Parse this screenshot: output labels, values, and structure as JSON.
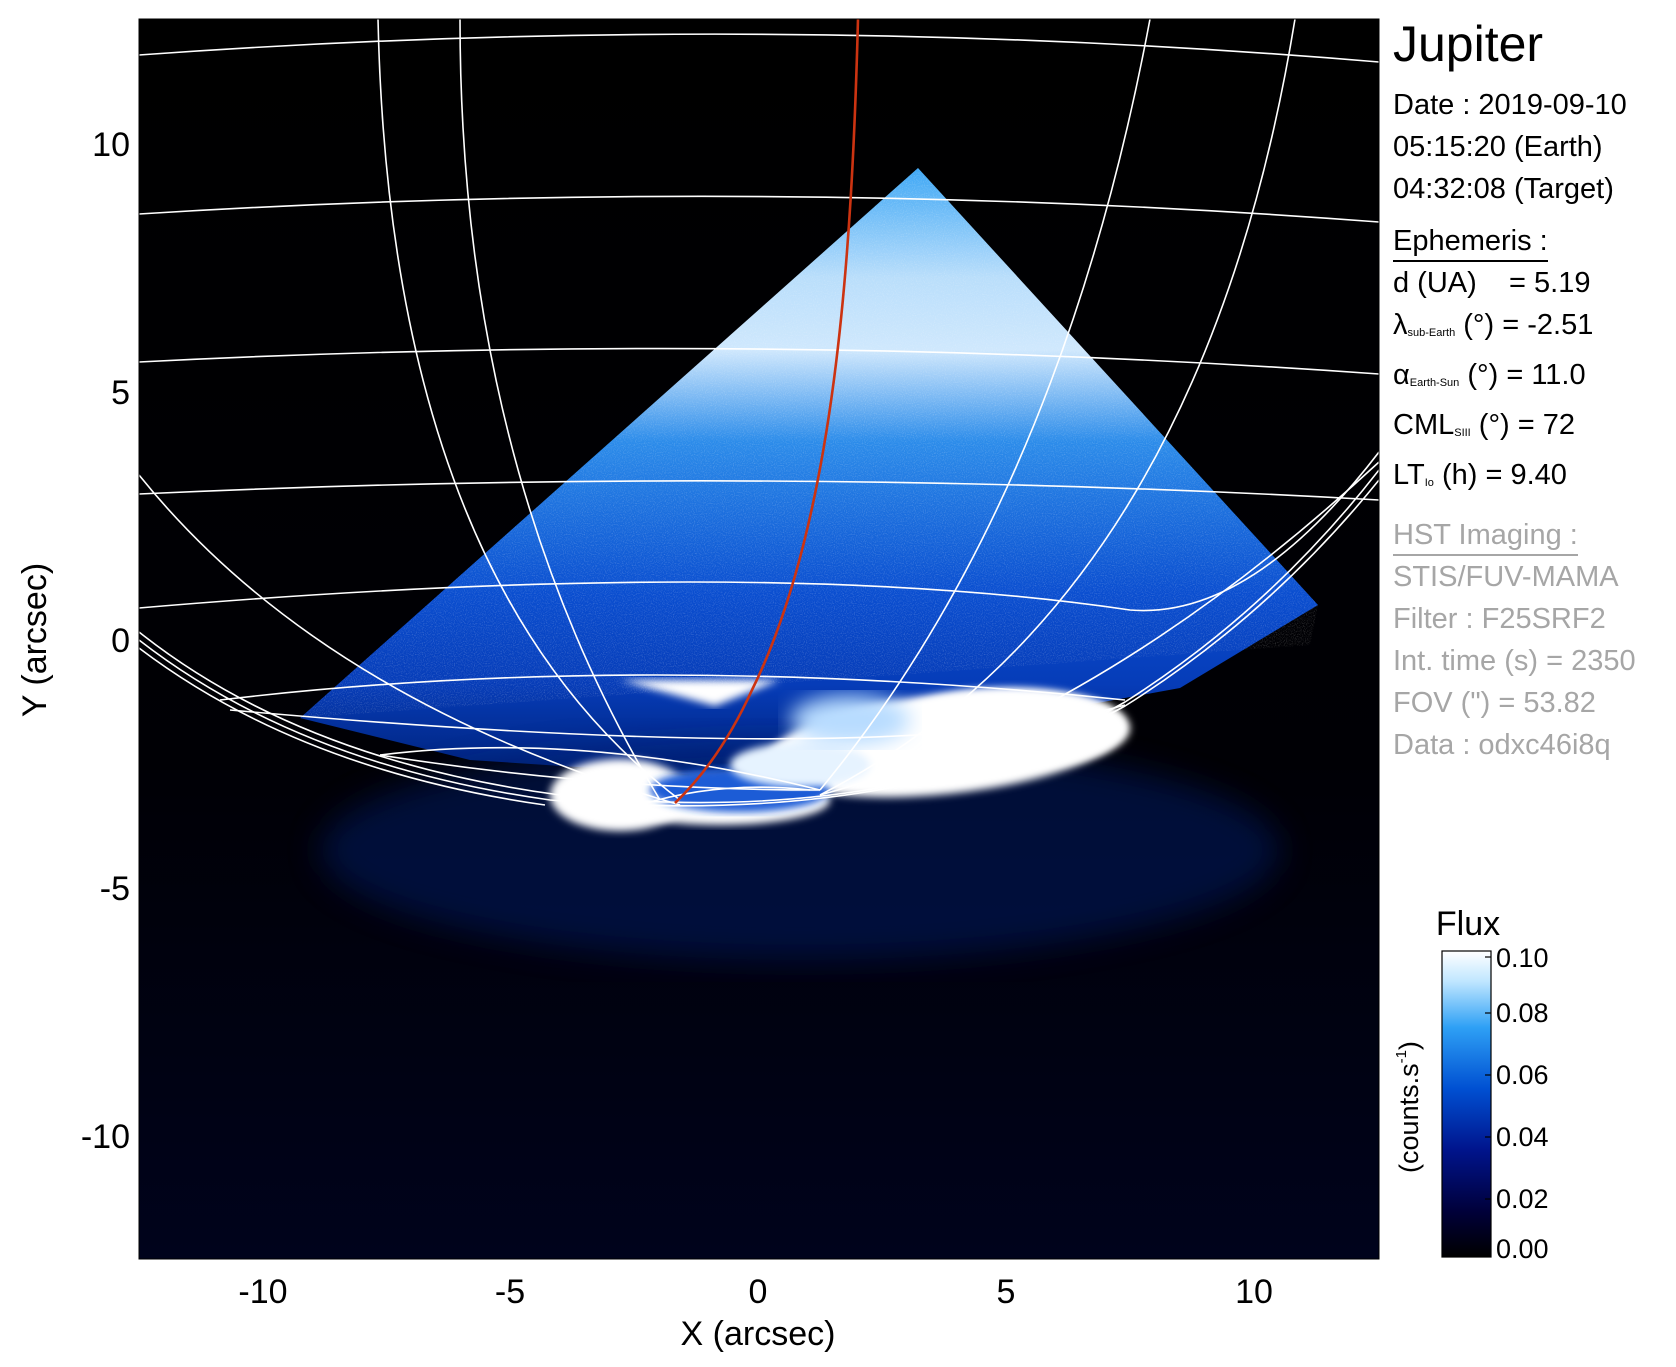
{
  "chart_data": {
    "type": "heatmap",
    "title": "",
    "xlabel": "X (arcsec)",
    "ylabel": "Y (arcsec)",
    "xlim": [
      -12.5,
      12.5
    ],
    "ylim": [
      -12.5,
      12.5
    ],
    "xticks": [
      -10,
      -5,
      0,
      5,
      10
    ],
    "yticks": [
      10,
      5,
      0,
      -5,
      -10
    ],
    "colorbar": {
      "label": "Flux",
      "unit_label": "(counts.s",
      "unit_sup": "-1",
      "unit_close": ")",
      "range": [
        0.0,
        0.1
      ],
      "ticks": [
        "0.00",
        "0.02",
        "0.04",
        "0.06",
        "0.08",
        "0.10"
      ],
      "colors": [
        "#000000",
        "#00003a",
        "#00148c",
        "#0050d2",
        "#2ea0f5",
        "#bfe6ff",
        "#ffffff"
      ]
    },
    "overlays": {
      "grid_color": "#ffffff",
      "footprint_color": "#cc3311"
    }
  },
  "info": {
    "target": "Jupiter",
    "date_line": "Date : 2019-09-10",
    "time_earth": "05:15:20 (Earth)",
    "time_target": "04:32:08 (Target)",
    "ephemeris_header": "Ephemeris :",
    "eph_d": "d (UA)    = 5.19",
    "eph_lambda_sym": "λ",
    "eph_lambda_sub": "sub-Earth",
    "eph_lambda_rest": " (°) = -2.51",
    "eph_alpha_sym": "α",
    "eph_alpha_sub": "Earth-Sun",
    "eph_alpha_rest": " (°) = 11.0",
    "eph_cml_sym": "CML",
    "eph_cml_sub": "SIII",
    "eph_cml_rest": " (°) = 72",
    "eph_lt_sym": "LT",
    "eph_lt_sub": "Io",
    "eph_lt_rest": " (h) = 9.40",
    "hst_header": "HST Imaging :",
    "hst_instrument": "STIS/FUV-MAMA",
    "hst_filter": "Filter : F25SRF2",
    "hst_int_time": "Int. time (s) = 2350",
    "hst_fov": "FOV (\") = 53.82",
    "hst_data": "Data : odxc46i8q"
  }
}
